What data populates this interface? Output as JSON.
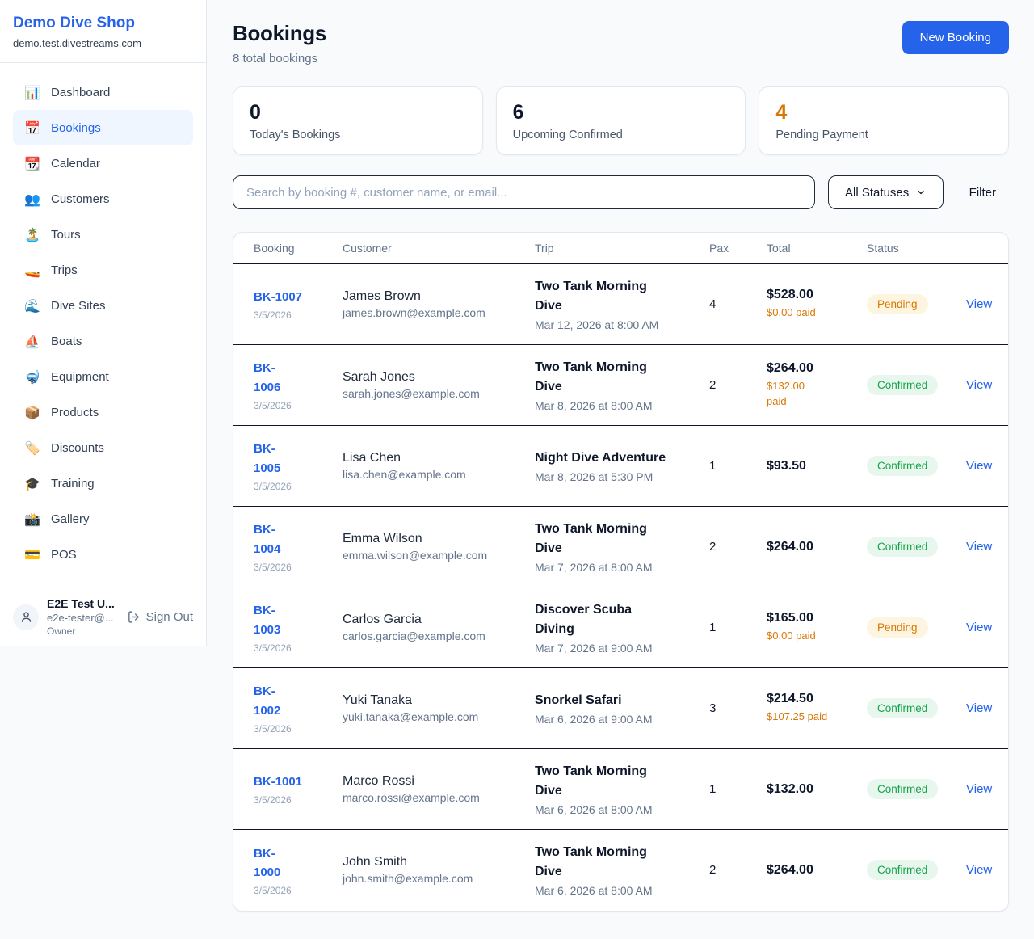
{
  "colors": {
    "accent_blue": "#2563eb",
    "pending_orange": "#d97706",
    "confirmed_green": "#16a34a",
    "pending_badge_bg": "#fdf5df",
    "confirmed_badge_bg": "#e8f7ee"
  },
  "sidebar": {
    "brand": {
      "name": "Demo Dive Shop",
      "domain": "demo.test.divestreams.com"
    },
    "items": [
      {
        "label": "Dashboard",
        "icon": "bar-chart-icon",
        "glyph": "📊",
        "active": false
      },
      {
        "label": "Bookings",
        "icon": "calendar-date-icon",
        "glyph": "📅",
        "active": true
      },
      {
        "label": "Calendar",
        "icon": "tear-off-calendar-icon",
        "glyph": "📆",
        "active": false
      },
      {
        "label": "Customers",
        "icon": "people-icon",
        "glyph": "👥",
        "active": false
      },
      {
        "label": "Tours",
        "icon": "island-icon",
        "glyph": "🏝️",
        "active": false
      },
      {
        "label": "Trips",
        "icon": "speedboat-icon",
        "glyph": "🚤",
        "active": false
      },
      {
        "label": "Dive Sites",
        "icon": "wave-icon",
        "glyph": "🌊",
        "active": false
      },
      {
        "label": "Boats",
        "icon": "sailboat-icon",
        "glyph": "⛵",
        "active": false
      },
      {
        "label": "Equipment",
        "icon": "diving-mask-icon",
        "glyph": "🤿",
        "active": false
      },
      {
        "label": "Products",
        "icon": "package-icon",
        "glyph": "📦",
        "active": false
      },
      {
        "label": "Discounts",
        "icon": "tag-icon",
        "glyph": "🏷️",
        "active": false
      },
      {
        "label": "Training",
        "icon": "graduation-cap-icon",
        "glyph": "🎓",
        "active": false
      },
      {
        "label": "Gallery",
        "icon": "camera-icon",
        "glyph": "📸",
        "active": false
      },
      {
        "label": "POS",
        "icon": "credit-card-icon",
        "glyph": "💳",
        "active": false
      }
    ],
    "user": {
      "name": "E2E Test U...",
      "email": "e2e-tester@...",
      "role": "Owner",
      "sign_out_label": "Sign Out"
    }
  },
  "header": {
    "title": "Bookings",
    "subtitle": "8 total bookings",
    "new_booking_label": "New Booking"
  },
  "stats": [
    {
      "value": "0",
      "label": "Today's Bookings"
    },
    {
      "value": "6",
      "label": "Upcoming Confirmed"
    },
    {
      "value": "4",
      "label": "Pending Payment"
    }
  ],
  "filters": {
    "search_placeholder": "Search by booking #, customer name, or email...",
    "status_selected": "All Statuses",
    "filter_label": "Filter"
  },
  "table": {
    "columns": [
      "Booking",
      "Customer",
      "Trip",
      "Pax",
      "Total",
      "Status",
      ""
    ],
    "view_label": "View",
    "rows": [
      {
        "id": "BK-1007",
        "date": "3/5/2026",
        "customer": "James Brown",
        "email": "james.brown@example.com",
        "trip": "Two Tank Morning\nDive",
        "trip_time": "Mar 12, 2026 at 8:00 AM",
        "pax": "4",
        "total": "$528.00",
        "paid": "$0.00 paid",
        "status": "Pending"
      },
      {
        "id": "BK-\n1006",
        "date": "3/5/2026",
        "customer": "Sarah Jones",
        "email": "sarah.jones@example.com",
        "trip": "Two Tank Morning\nDive",
        "trip_time": "Mar 8, 2026 at 8:00 AM",
        "pax": "2",
        "total": "$264.00",
        "paid": "$132.00\npaid",
        "status": "Confirmed"
      },
      {
        "id": "BK-\n1005",
        "date": "3/5/2026",
        "customer": "Lisa Chen",
        "email": "lisa.chen@example.com",
        "trip": "Night Dive Adventure",
        "trip_time": "Mar 8, 2026 at 5:30 PM",
        "pax": "1",
        "total": "$93.50",
        "paid": "",
        "status": "Confirmed"
      },
      {
        "id": "BK-\n1004",
        "date": "3/5/2026",
        "customer": "Emma Wilson",
        "email": "emma.wilson@example.com",
        "trip": "Two Tank Morning\nDive",
        "trip_time": "Mar 7, 2026 at 8:00 AM",
        "pax": "2",
        "total": "$264.00",
        "paid": "",
        "status": "Confirmed"
      },
      {
        "id": "BK-\n1003",
        "date": "3/5/2026",
        "customer": "Carlos Garcia",
        "email": "carlos.garcia@example.com",
        "trip": "Discover Scuba\nDiving",
        "trip_time": "Mar 7, 2026 at 9:00 AM",
        "pax": "1",
        "total": "$165.00",
        "paid": "$0.00 paid",
        "status": "Pending"
      },
      {
        "id": "BK-\n1002",
        "date": "3/5/2026",
        "customer": "Yuki Tanaka",
        "email": "yuki.tanaka@example.com",
        "trip": "Snorkel Safari",
        "trip_time": "Mar 6, 2026 at 9:00 AM",
        "pax": "3",
        "total": "$214.50",
        "paid": "$107.25 paid",
        "status": "Confirmed"
      },
      {
        "id": "BK-1001",
        "date": "3/5/2026",
        "customer": "Marco Rossi",
        "email": "marco.rossi@example.com",
        "trip": "Two Tank Morning\nDive",
        "trip_time": "Mar 6, 2026 at 8:00 AM",
        "pax": "1",
        "total": "$132.00",
        "paid": "",
        "status": "Confirmed"
      },
      {
        "id": "BK-\n1000",
        "date": "3/5/2026",
        "customer": "John Smith",
        "email": "john.smith@example.com",
        "trip": "Two Tank Morning\nDive",
        "trip_time": "Mar 6, 2026 at 8:00 AM",
        "pax": "2",
        "total": "$264.00",
        "paid": "",
        "status": "Confirmed"
      }
    ]
  }
}
